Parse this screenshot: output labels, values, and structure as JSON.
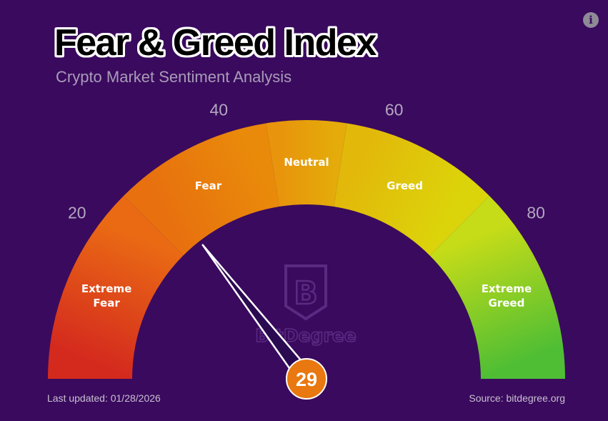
{
  "header": {
    "title": "Fear & Greed Index",
    "subtitle": "Crypto Market Sentiment Analysis",
    "info_icon": "info-icon",
    "info_glyph": "i"
  },
  "chart_data": {
    "type": "gauge",
    "title": "Fear & Greed Index",
    "subtitle": "Crypto Market Sentiment Analysis",
    "range": [
      0,
      100
    ],
    "value": 29,
    "value_label": "29",
    "ticks": [
      {
        "value": 20,
        "label": "20"
      },
      {
        "value": 40,
        "label": "40"
      },
      {
        "value": 60,
        "label": "60"
      },
      {
        "value": 80,
        "label": "80"
      }
    ],
    "zones": [
      {
        "from": 0,
        "to": 25,
        "label": "Extreme Fear",
        "lines": [
          "Extreme",
          "Fear"
        ],
        "color_start": "#d42a1e",
        "color_end": "#ea6a14"
      },
      {
        "from": 25,
        "to": 45,
        "label": "Fear",
        "lines": [
          "Fear"
        ],
        "color_start": "#e8700f",
        "color_end": "#e98a0a"
      },
      {
        "from": 45,
        "to": 55,
        "label": "Neutral",
        "lines": [
          "Neutral"
        ],
        "color_start": "#e8940c",
        "color_end": "#e4ab0a"
      },
      {
        "from": 55,
        "to": 75,
        "label": "Greed",
        "lines": [
          "Greed"
        ],
        "color_start": "#e2b80a",
        "color_end": "#dcd40a"
      },
      {
        "from": 75,
        "to": 100,
        "label": "Extreme Greed",
        "lines": [
          "Extreme",
          "Greed"
        ],
        "color_start": "#c6dc18",
        "color_end": "#4fbe34"
      }
    ],
    "needle_color": "#2a0a50",
    "value_badge_color": "#e8780f"
  },
  "watermark": {
    "brand": "BitDegree",
    "glyph": "B"
  },
  "footer": {
    "last_updated": "Last updated: 01/28/2026",
    "source": "Source: bitdegree.org"
  }
}
